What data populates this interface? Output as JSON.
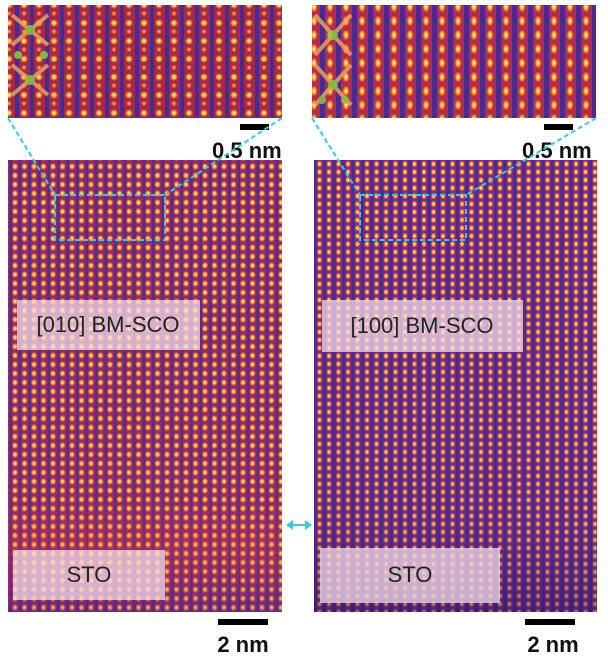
{
  "insets": [
    {
      "scale_label": "0.5 nm"
    },
    {
      "scale_label": "0.5 nm"
    }
  ],
  "panels": [
    {
      "orientation_label": "[010] BM-SCO",
      "substrate_label": "STO",
      "scale_label": "2 nm"
    },
    {
      "orientation_label": "[100] BM-SCO",
      "substrate_label": "STO",
      "scale_label": "2 nm"
    }
  ]
}
